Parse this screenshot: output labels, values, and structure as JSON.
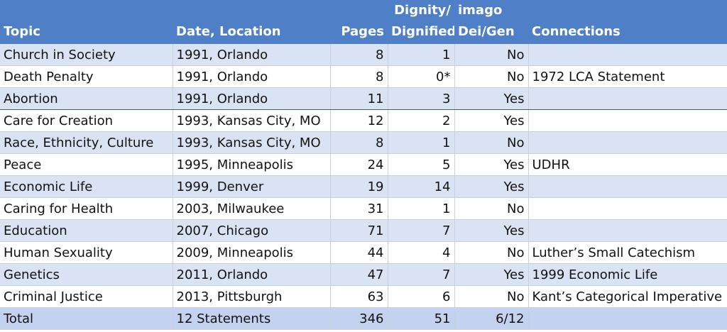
{
  "headers": {
    "topic": "Topic",
    "date_location": "Date, Location",
    "pages": "Pages",
    "dignity_line1": "Dignity/",
    "dignity_line2": "Dignified",
    "imago_line1": "imago",
    "imago_line2": "Dei/Gen",
    "connections": "Connections"
  },
  "rows": [
    {
      "topic": "Church in Society",
      "date_location": "1991, Orlando",
      "pages": "8",
      "dignity": "1",
      "imago": "No",
      "connections": ""
    },
    {
      "topic": "Death Penalty",
      "date_location": "1991, Orlando",
      "pages": "8",
      "dignity": "0*",
      "imago": "No",
      "connections": "1972 LCA Statement"
    },
    {
      "topic": "Abortion",
      "date_location": "1991, Orlando",
      "pages": "11",
      "dignity": "3",
      "imago": "Yes",
      "connections": ""
    },
    {
      "topic": "Care for Creation",
      "date_location": "1993, Kansas City, MO",
      "pages": "12",
      "dignity": "2",
      "imago": "Yes",
      "connections": ""
    },
    {
      "topic": "Race, Ethnicity, Culture",
      "date_location": "1993, Kansas City, MO",
      "pages": "8",
      "dignity": "1",
      "imago": "No",
      "connections": ""
    },
    {
      "topic": "Peace",
      "date_location": "1995, Minneapolis",
      "pages": "24",
      "dignity": "5",
      "imago": "Yes",
      "connections": "UDHR"
    },
    {
      "topic": "Economic Life",
      "date_location": "1999, Denver",
      "pages": "19",
      "dignity": "14",
      "imago": "Yes",
      "connections": ""
    },
    {
      "topic": "Caring for Health",
      "date_location": "2003, Milwaukee",
      "pages": "31",
      "dignity": "1",
      "imago": "No",
      "connections": ""
    },
    {
      "topic": "Education",
      "date_location": "2007, Chicago",
      "pages": "71",
      "dignity": "7",
      "imago": "Yes",
      "connections": ""
    },
    {
      "topic": "Human Sexuality",
      "date_location": "2009, Minneapolis",
      "pages": "44",
      "dignity": "4",
      "imago": "No",
      "connections": "Luther’s Small Catechism"
    },
    {
      "topic": "Genetics",
      "date_location": "2011, Orlando",
      "pages": "47",
      "dignity": "7",
      "imago": "Yes",
      "connections": "1999 Economic Life"
    },
    {
      "topic": "Criminal Justice",
      "date_location": "2013, Pittsburgh",
      "pages": "63",
      "dignity": "6",
      "imago": "No",
      "connections": "Kant’s Categorical Imperative"
    }
  ],
  "total": {
    "topic": "Total",
    "date_location": "12 Statements",
    "pages": "346",
    "dignity": "51",
    "imago": "6/12",
    "connections": ""
  },
  "colors": {
    "header": "#4e7fc7",
    "band": "#dae3f3",
    "total_row": "#c3d2ee"
  }
}
